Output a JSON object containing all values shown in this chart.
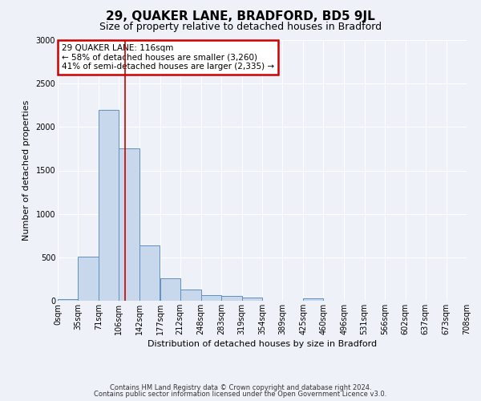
{
  "title": "29, QUAKER LANE, BRADFORD, BD5 9JL",
  "subtitle": "Size of property relative to detached houses in Bradford",
  "xlabel": "Distribution of detached houses by size in Bradford",
  "ylabel": "Number of detached properties",
  "bar_color": "#c8d8ec",
  "bar_edge_color": "#6090c0",
  "fig_bg_color": "#eef2f8",
  "plot_bg_color": "#eef2f8",
  "grid_color": "#ffffff",
  "annotation_box_color": "#cc0000",
  "vline_color": "#cc0000",
  "vline_x": 116,
  "annotation_title": "29 QUAKER LANE: 116sqm",
  "annotation_line2": "← 58% of detached houses are smaller (3,260)",
  "annotation_line3": "41% of semi-detached houses are larger (2,335) →",
  "footer1": "Contains HM Land Registry data © Crown copyright and database right 2024.",
  "footer2": "Contains public sector information licensed under the Open Government Licence v3.0.",
  "bin_edges": [
    0,
    35,
    71,
    106,
    142,
    177,
    212,
    248,
    283,
    319,
    354,
    389,
    425,
    460,
    496,
    531,
    566,
    602,
    637,
    673,
    708
  ],
  "bin_counts": [
    20,
    510,
    2200,
    1750,
    635,
    260,
    130,
    65,
    60,
    35,
    0,
    0,
    25,
    0,
    0,
    0,
    0,
    0,
    0,
    0
  ],
  "ylim": [
    0,
    3000
  ],
  "yticks": [
    0,
    500,
    1000,
    1500,
    2000,
    2500,
    3000
  ],
  "title_fontsize": 11,
  "subtitle_fontsize": 9,
  "axis_label_fontsize": 8,
  "tick_fontsize": 7,
  "footer_fontsize": 6
}
